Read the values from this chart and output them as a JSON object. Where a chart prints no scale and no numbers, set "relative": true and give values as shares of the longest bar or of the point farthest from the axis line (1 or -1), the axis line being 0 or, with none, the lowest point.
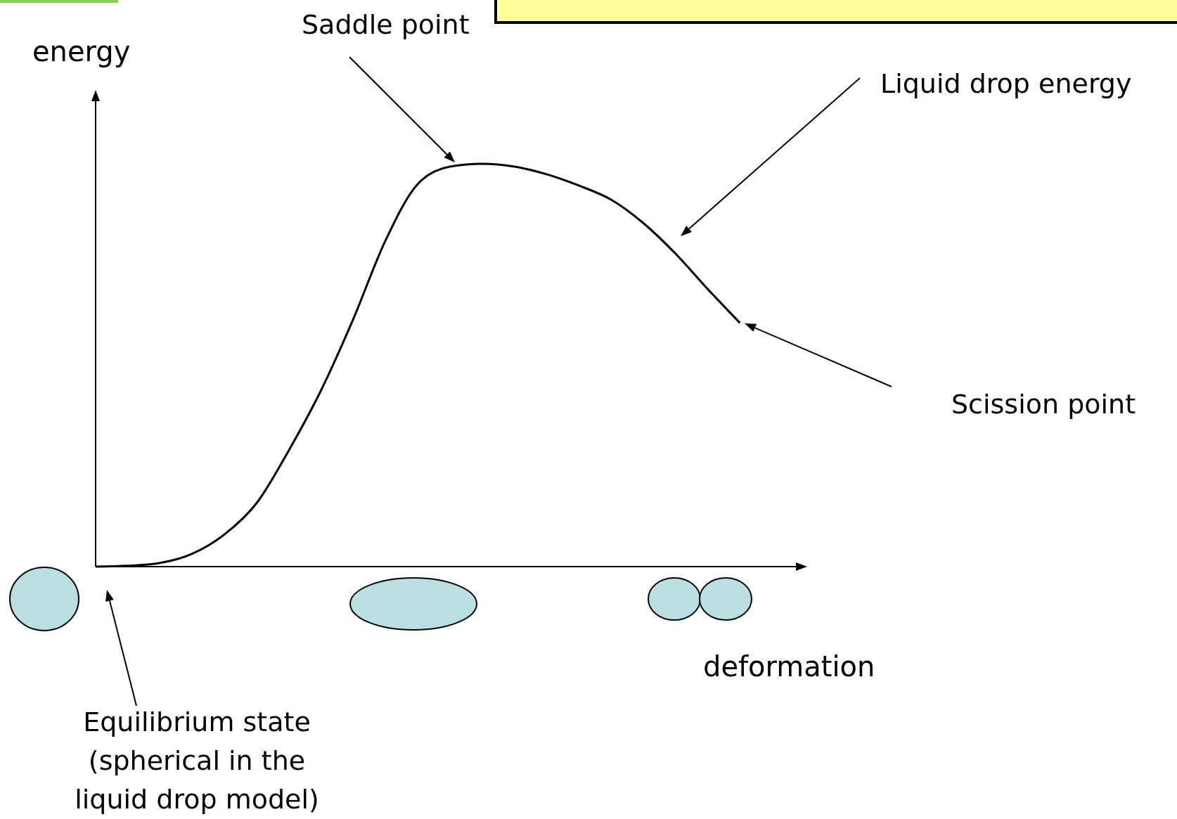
{
  "chart_data": {
    "type": "line",
    "relative": true,
    "xlabel": "deformation",
    "ylabel": "energy",
    "categories": [
      null,
      null,
      null,
      null,
      null,
      null,
      null,
      null,
      null,
      null,
      null,
      null,
      null,
      null,
      null,
      null,
      null,
      null,
      null,
      null,
      null,
      null,
      null
    ],
    "values": [
      0,
      0.002,
      0.009,
      0.032,
      0.08,
      0.158,
      0.289,
      0.438,
      0.615,
      0.81,
      0.95,
      0.993,
      1,
      0.993,
      0.974,
      0.946,
      0.911,
      0.853,
      0.777,
      0.689,
      0.605,
      null,
      null
    ],
    "color": "#000000",
    "marker": "none",
    "annotations": [
      "Saddle point",
      "Liquid drop energy",
      "Scission point",
      "Equilibrium state\n(spherical in the\nliquid drop model)"
    ]
  }
}
